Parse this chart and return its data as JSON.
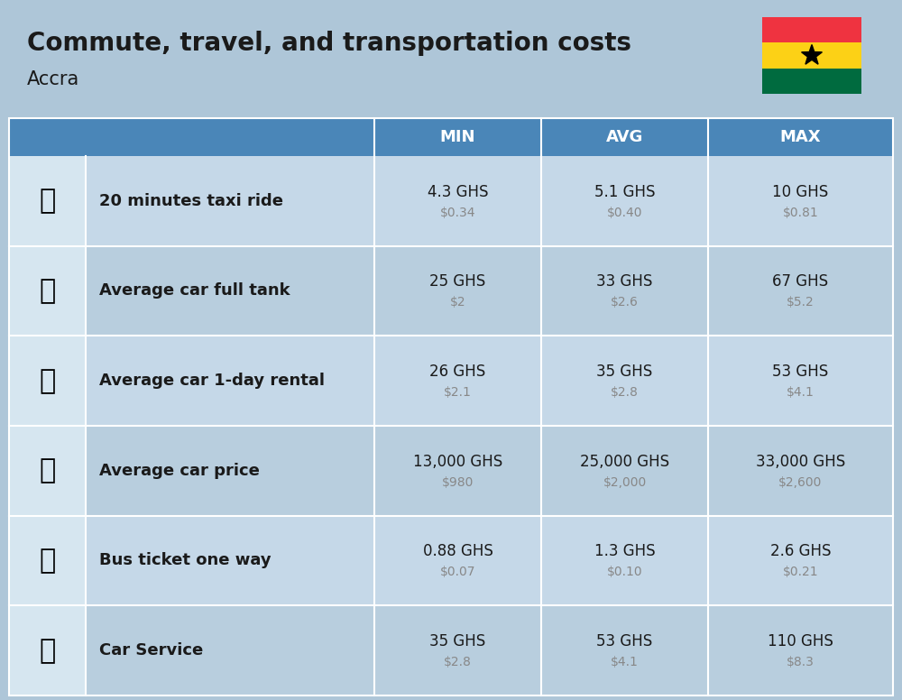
{
  "title": "Commute, travel, and transportation costs",
  "subtitle": "Accra",
  "background_color": "#aec6d8",
  "header_bg_color": "#4a86b8",
  "header_text_color": "#ffffff",
  "row_bg_light": "#c5d8e8",
  "row_bg_dark": "#b8cede",
  "cell_bg": "#d6e6f0",
  "separator_color": "#ffffff",
  "label_text_color": "#1a1a1a",
  "value_text_color": "#1a1a1a",
  "usd_text_color": "#888888",
  "columns": [
    "MIN",
    "AVG",
    "MAX"
  ],
  "rows": [
    {
      "label": "20 minutes taxi ride",
      "emoji": "🚕",
      "min_ghs": "4.3 GHS",
      "min_usd": "$0.34",
      "avg_ghs": "5.1 GHS",
      "avg_usd": "$0.40",
      "max_ghs": "10 GHS",
      "max_usd": "$0.81"
    },
    {
      "label": "Average car full tank",
      "emoji": "⛽",
      "min_ghs": "25 GHS",
      "min_usd": "$2",
      "avg_ghs": "33 GHS",
      "avg_usd": "$2.6",
      "max_ghs": "67 GHS",
      "max_usd": "$5.2"
    },
    {
      "label": "Average car 1-day rental",
      "emoji": "🚙",
      "min_ghs": "26 GHS",
      "min_usd": "$2.1",
      "avg_ghs": "35 GHS",
      "avg_usd": "$2.8",
      "max_ghs": "53 GHS",
      "max_usd": "$4.1"
    },
    {
      "label": "Average car price",
      "emoji": "🚗",
      "min_ghs": "13,000 GHS",
      "min_usd": "$980",
      "avg_ghs": "25,000 GHS",
      "avg_usd": "$2,000",
      "max_ghs": "33,000 GHS",
      "max_usd": "$2,600"
    },
    {
      "label": "Bus ticket one way",
      "emoji": "🚌",
      "min_ghs": "0.88 GHS",
      "min_usd": "$0.07",
      "avg_ghs": "1.3 GHS",
      "avg_usd": "$0.10",
      "max_ghs": "2.6 GHS",
      "max_usd": "$0.21"
    },
    {
      "label": "Car Service",
      "emoji": "🚗",
      "min_ghs": "35 GHS",
      "min_usd": "$2.8",
      "avg_ghs": "53 GHS",
      "avg_usd": "$4.1",
      "max_ghs": "110 GHS",
      "max_usd": "$8.3"
    }
  ],
  "flag_colors": [
    "#EF3340",
    "#FCD116",
    "#006B3F"
  ],
  "flag_star_color": "#000000"
}
